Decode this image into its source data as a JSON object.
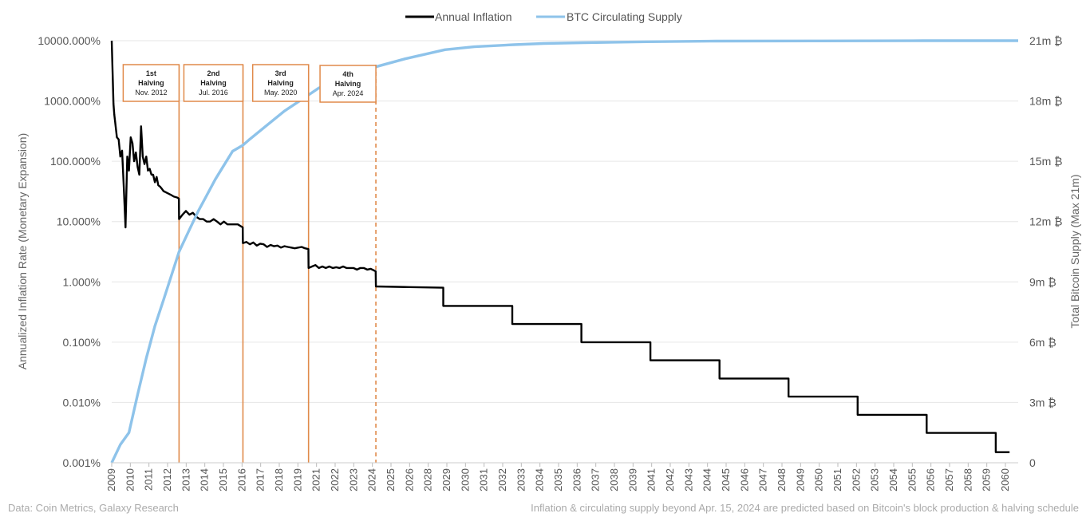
{
  "chart_data": {
    "type": "line",
    "title": "",
    "legend": {
      "placement": "top-center",
      "entries": [
        {
          "name": "Annual Inflation",
          "color": "#000000"
        },
        {
          "name": "BTC Circulating Supply",
          "color": "#8ec3ea"
        }
      ]
    },
    "ylabel_left": "Annualized Inflation Rate (Monetary Expansion)",
    "ylabel_right": "Total Bitcoin Supply (Max 21m)",
    "y_left": {
      "scale": "log",
      "range": [
        0.001,
        10000
      ],
      "tick_values": [
        0.001,
        0.01,
        0.1,
        1,
        10,
        100,
        1000,
        10000
      ],
      "tick_labels": [
        "0.001%",
        "0.010%",
        "0.100%",
        "1.000%",
        "10.000%",
        "100.000%",
        "1000.000%",
        "10000.000%"
      ]
    },
    "y_right": {
      "scale": "linear",
      "range": [
        0,
        21
      ],
      "tick_values": [
        0,
        3,
        6,
        9,
        12,
        15,
        18,
        21
      ],
      "tick_labels": [
        "0",
        "3m ₿",
        "6m ₿",
        "9m ₿",
        "12m ₿",
        "15m ₿",
        "18m ₿",
        "21m ₿"
      ]
    },
    "x_axis": {
      "range": [
        2009,
        2061.5
      ],
      "tick_labels": [
        "2009",
        "2010",
        "2011",
        "2012",
        "2013",
        "2014",
        "2015",
        "2016",
        "2017",
        "2018",
        "2019",
        "2021",
        "2022",
        "2023",
        "2024",
        "2025",
        "2026",
        "2028",
        "2029",
        "2030",
        "2031",
        "2032",
        "2033",
        "2034",
        "2035",
        "2036",
        "2037",
        "2038",
        "2039",
        "2041",
        "2042",
        "2043",
        "2044",
        "2045",
        "2046",
        "2047",
        "2048",
        "2049",
        "2050",
        "2051",
        "2052",
        "2053",
        "2054",
        "2055",
        "2056",
        "2057",
        "2058",
        "2059",
        "2060"
      ]
    },
    "grid": "horizontal",
    "halvings": [
      {
        "number": "1st",
        "label": "Halving",
        "date": "Nov. 2012",
        "x": 2012.9,
        "projected": false
      },
      {
        "number": "2nd",
        "label": "Halving",
        "date": "Jul. 2016",
        "x": 2016.6,
        "projected": false
      },
      {
        "number": "3rd",
        "label": "Halving",
        "date": "May. 2020",
        "x": 2020.4,
        "projected": false
      },
      {
        "number": "4th",
        "label": "Halving",
        "date": "Apr. 2024",
        "x": 2024.3,
        "projected": true
      }
    ],
    "series": [
      {
        "name": "Annual Inflation",
        "axis": "left",
        "x": [
          2009.0,
          2009.05,
          2009.1,
          2009.15,
          2009.2,
          2009.3,
          2009.4,
          2009.5,
          2009.6,
          2009.7,
          2009.8,
          2009.9,
          2010.0,
          2010.1,
          2010.2,
          2010.3,
          2010.4,
          2010.5,
          2010.6,
          2010.7,
          2010.8,
          2010.9,
          2011.0,
          2011.1,
          2011.2,
          2011.3,
          2011.4,
          2011.5,
          2011.6,
          2011.7,
          2011.8,
          2011.9,
          2012.0,
          2012.2,
          2012.4,
          2012.6,
          2012.8,
          2012.89,
          2012.9,
          2013.1,
          2013.3,
          2013.5,
          2013.7,
          2013.9,
          2014.1,
          2014.3,
          2014.5,
          2014.7,
          2014.9,
          2015.1,
          2015.3,
          2015.5,
          2015.7,
          2015.9,
          2016.1,
          2016.3,
          2016.59,
          2016.6,
          2016.8,
          2017.0,
          2017.2,
          2017.4,
          2017.6,
          2017.8,
          2018.0,
          2018.2,
          2018.4,
          2018.6,
          2018.8,
          2019.0,
          2019.2,
          2019.4,
          2019.6,
          2019.8,
          2020.0,
          2020.2,
          2020.39,
          2020.4,
          2020.6,
          2020.8,
          2021.0,
          2021.2,
          2021.4,
          2021.6,
          2021.8,
          2022.0,
          2022.2,
          2022.4,
          2022.6,
          2022.8,
          2023.0,
          2023.2,
          2023.4,
          2023.6,
          2023.8,
          2024.0,
          2024.29,
          2024.3,
          2026.2,
          2028.2,
          2028.2,
          2032.2,
          2032.2,
          2036.2,
          2036.2,
          2040.2,
          2040.2,
          2044.2,
          2044.2,
          2048.2,
          2048.2,
          2052.2,
          2052.2,
          2056.2,
          2056.2,
          2060.2,
          2060.2,
          2061.0
        ],
        "values": [
          10000,
          3000,
          900,
          600,
          450,
          250,
          230,
          120,
          150,
          38,
          8,
          120,
          70,
          250,
          200,
          100,
          140,
          80,
          60,
          380,
          120,
          90,
          120,
          70,
          75,
          60,
          60,
          45,
          55,
          40,
          38,
          35,
          32,
          30,
          28,
          26,
          25,
          24,
          11,
          13,
          15,
          13,
          14,
          12,
          11,
          11,
          10,
          10,
          11,
          10,
          9,
          10,
          9,
          9,
          9,
          9,
          8,
          4.4,
          4.6,
          4.2,
          4.5,
          4.0,
          4.3,
          4.2,
          3.8,
          4.1,
          3.9,
          4.0,
          3.7,
          3.9,
          3.8,
          3.7,
          3.6,
          3.7,
          3.8,
          3.6,
          3.5,
          1.7,
          1.8,
          1.9,
          1.7,
          1.8,
          1.7,
          1.8,
          1.7,
          1.75,
          1.7,
          1.8,
          1.7,
          1.7,
          1.7,
          1.6,
          1.7,
          1.7,
          1.6,
          1.65,
          1.5,
          0.84,
          0.82,
          0.8,
          0.4,
          0.4,
          0.2,
          0.2,
          0.1,
          0.1,
          0.05,
          0.05,
          0.025,
          0.025,
          0.0125,
          0.0125,
          0.00625,
          0.00625,
          0.003125,
          0.003125,
          0.0015,
          0.0015
        ]
      },
      {
        "name": "BTC Circulating Supply",
        "axis": "right",
        "x": [
          2009.0,
          2009.5,
          2010.0,
          2010.5,
          2011.0,
          2011.5,
          2012.0,
          2012.9,
          2013.5,
          2014.0,
          2014.5,
          2015.0,
          2015.5,
          2016.0,
          2016.6,
          2017.0,
          2018.0,
          2019.0,
          2020.4,
          2021.0,
          2022.0,
          2023.0,
          2024.3,
          2026.0,
          2028.3,
          2030.0,
          2032.3,
          2034.0,
          2036.3,
          2040.0,
          2044.0,
          2050.0,
          2056.0,
          2061.5
        ],
        "values": [
          0,
          0.9,
          1.5,
          3.4,
          5.2,
          6.8,
          8.1,
          10.5,
          11.6,
          12.5,
          13.3,
          14.1,
          14.8,
          15.5,
          15.8,
          16.1,
          16.8,
          17.5,
          18.3,
          18.65,
          19.0,
          19.3,
          19.7,
          20.1,
          20.55,
          20.7,
          20.8,
          20.86,
          20.9,
          20.95,
          20.98,
          20.99,
          21.0,
          21.0
        ]
      }
    ]
  },
  "footer": {
    "source": "Data: Coin Metrics, Galaxy Research",
    "note": "Inflation & circulating supply beyond Apr. 15, 2024 are predicted based on Bitcoin's block production & halving schedule"
  },
  "colors": {
    "inflation_line": "#000000",
    "supply_line": "#8ec3ea",
    "halving_line": "#e08a4a",
    "grid": "#e6e6e6"
  }
}
